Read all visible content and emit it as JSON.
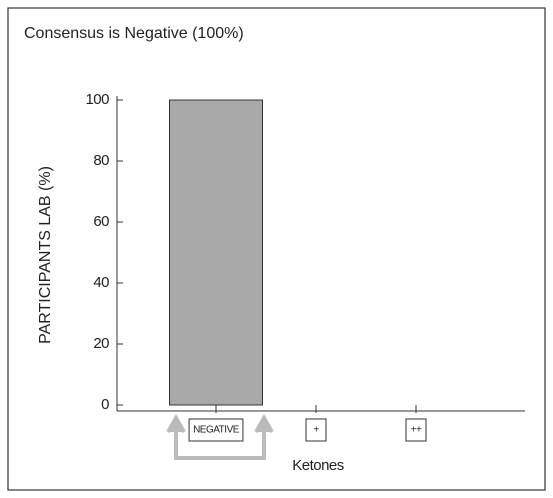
{
  "chart_data": {
    "type": "bar",
    "title": "Consensus is Negative (100%)",
    "y_label": "PARTICIPANTS LAB (%)",
    "x_label": "Ketones",
    "categories": [
      "NEGATIVE",
      "+",
      "++"
    ],
    "values": [
      100,
      0,
      0
    ],
    "color": "#a9a9a9",
    "ylim": [
      0,
      100
    ],
    "yticks": [
      0,
      20,
      40,
      60,
      80,
      100
    ]
  }
}
